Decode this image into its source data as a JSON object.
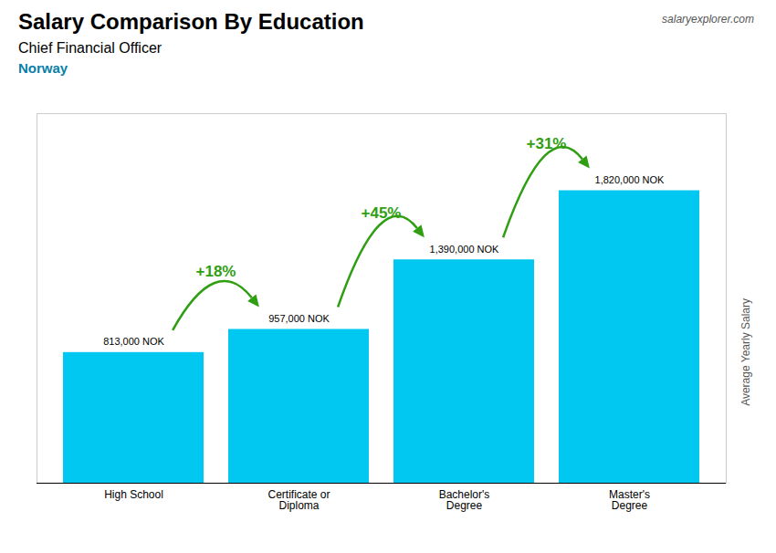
{
  "chart_data": {
    "type": "bar",
    "title": "Salary Comparison By Education",
    "subtitle": "Chief Financial Officer",
    "categories": [
      "High School",
      "Certificate or\nDiploma",
      "Bachelor's\nDegree",
      "Master's\nDegree"
    ],
    "values": [
      813000,
      957000,
      1390000,
      1820000
    ],
    "value_labels": [
      "813,000 NOK",
      "957,000 NOK",
      "1,390,000 NOK",
      "1,820,000 NOK"
    ],
    "data_labels": true,
    "color": "#00c8f0",
    "ylabel": "Average Yearly Salary",
    "ylim": [
      0,
      2300000
    ],
    "tick_labels": "x",
    "grid": false,
    "annotations": [
      {
        "text": "Norway"
      },
      {
        "text": "salaryexplorer.com"
      },
      {
        "text": "+18%",
        "from": "High School",
        "to": "Certificate or\nDiploma"
      },
      {
        "text": "+45%",
        "from": "Certificate or\nDiploma",
        "to": "Bachelor's\nDegree"
      },
      {
        "text": "+31%",
        "from": "Bachelor's\nDegree",
        "to": "Master's\nDegree"
      }
    ]
  }
}
